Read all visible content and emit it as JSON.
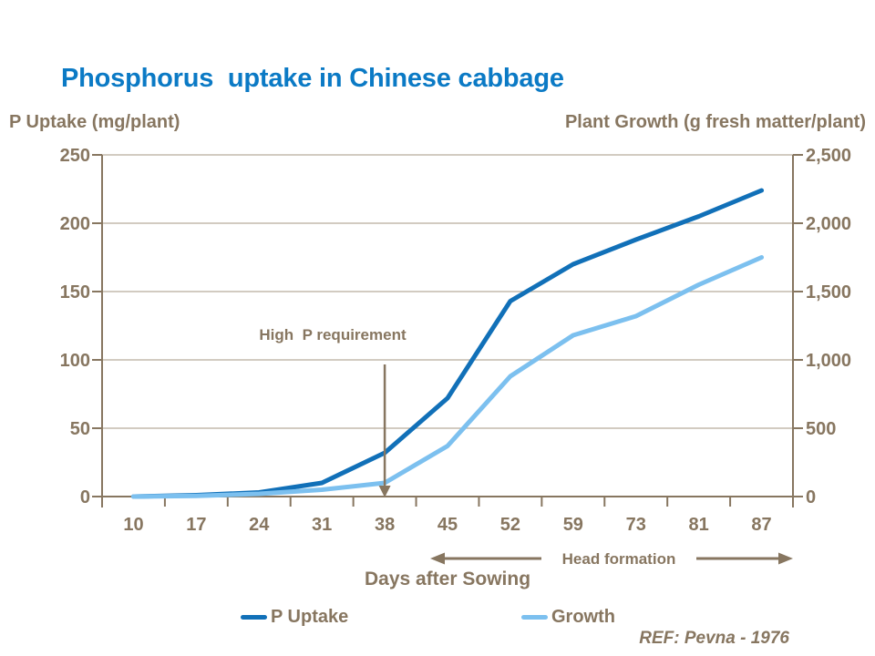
{
  "colors": {
    "title_blue": "#0B7AC5",
    "text_brown": "#877660",
    "gridline": "#B6AC9C",
    "axis_line": "#877660",
    "p_uptake_blue": "#1170B8",
    "growth_blue": "#7CC0EF",
    "background": "#FFFFFF"
  },
  "chart_data": {
    "type": "line",
    "title": "Phosphorus  uptake in Chinese cabbage",
    "categories": [
      10,
      17,
      24,
      31,
      38,
      45,
      52,
      59,
      73,
      81,
      87
    ],
    "x_axis": {
      "title": "Days after Sowing",
      "tick_labels": [
        "10",
        "17",
        "24",
        "31",
        "38",
        "45",
        "52",
        "59",
        "73",
        "81",
        "87"
      ]
    },
    "y_left": {
      "title": "P Uptake (mg/plant)",
      "min": 0,
      "max": 250,
      "tick_step": 50,
      "tick_labels": [
        "0",
        "50",
        "100",
        "150",
        "200",
        "250"
      ]
    },
    "y_right": {
      "title": "Plant Growth (g fresh matter/plant)",
      "min": 0,
      "max": 2500,
      "tick_step": 500,
      "tick_labels": [
        "0",
        "500",
        "1,000",
        "1,500",
        "2,000",
        "2,500"
      ]
    },
    "grid": true,
    "legend_position": "bottom",
    "series": [
      {
        "name": "P Uptake",
        "axis": "left",
        "color": "#1170B8",
        "values": [
          0,
          1,
          3,
          10,
          32,
          72,
          143,
          170,
          188,
          205,
          224
        ]
      },
      {
        "name": "Growth",
        "axis": "right",
        "color": "#7CC0EF",
        "values": [
          0,
          5,
          20,
          50,
          100,
          370,
          880,
          1180,
          1320,
          1550,
          1750
        ]
      }
    ],
    "annotations": [
      {
        "text": "High  P requirement",
        "type": "down-arrow",
        "x_category": 38
      },
      {
        "text": "Head formation",
        "type": "range-arrows",
        "x_from": 45,
        "x_to": 87
      },
      {
        "text": "REF: Pevna - 1976",
        "type": "reference"
      }
    ]
  }
}
